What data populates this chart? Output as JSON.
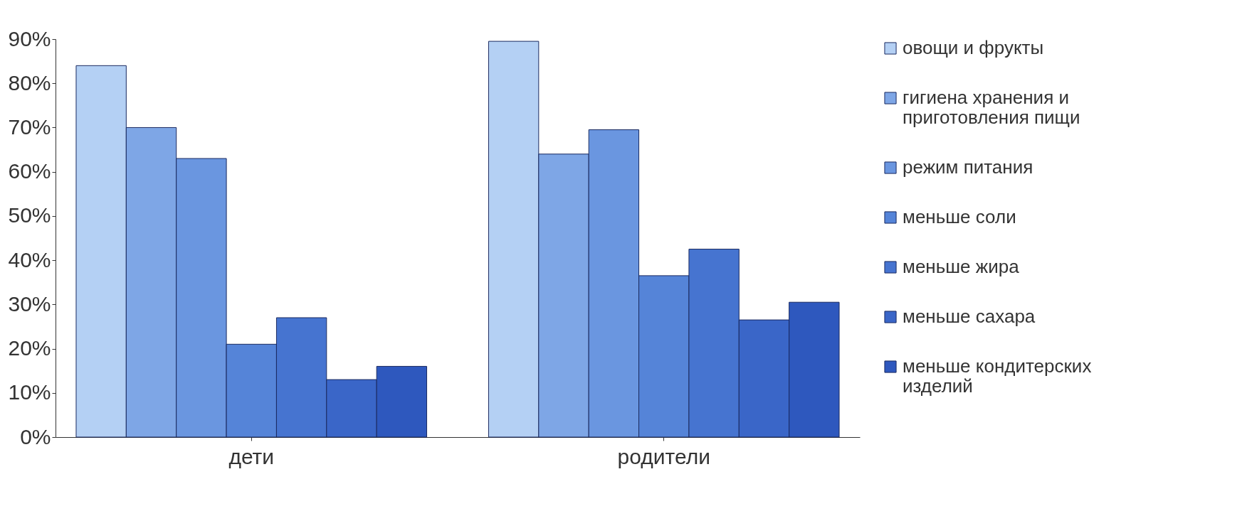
{
  "chart_data": {
    "type": "bar",
    "categories": [
      "дети",
      "родители"
    ],
    "series": [
      {
        "name": "овощи и фрукты",
        "color": "#b4d0f4",
        "values": [
          84,
          89.5
        ]
      },
      {
        "name": "гигиена хранения и приготовления пищи",
        "color": "#7ea6e6",
        "values": [
          70,
          64
        ]
      },
      {
        "name": "режим питания",
        "color": "#6a96e0",
        "values": [
          63,
          69.5
        ]
      },
      {
        "name": "меньше соли",
        "color": "#5584d8",
        "values": [
          21,
          36.5
        ]
      },
      {
        "name": "меньше жира",
        "color": "#4674d0",
        "values": [
          27,
          42.5
        ]
      },
      {
        "name": "меньше сахара",
        "color": "#3a66c8",
        "values": [
          13,
          26.5
        ]
      },
      {
        "name": "меньше кондитерских изделий",
        "color": "#2e58be",
        "values": [
          16,
          30.5
        ]
      }
    ],
    "ylim": [
      0,
      90
    ],
    "yticks": [
      {
        "value": 0,
        "label": "0%"
      },
      {
        "value": 10,
        "label": "10%"
      },
      {
        "value": 20,
        "label": "20%"
      },
      {
        "value": 30,
        "label": "30%"
      },
      {
        "value": 40,
        "label": "40%"
      },
      {
        "value": 50,
        "label": "50%"
      },
      {
        "value": 60,
        "label": "60%"
      },
      {
        "value": 70,
        "label": "70%"
      },
      {
        "value": 80,
        "label": "80%"
      },
      {
        "value": 90,
        "label": "90%"
      }
    ],
    "grid": false,
    "legend": "right"
  }
}
